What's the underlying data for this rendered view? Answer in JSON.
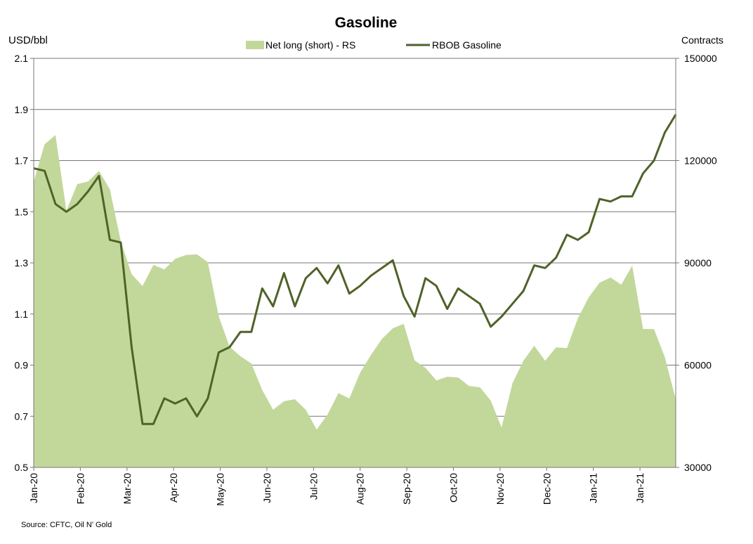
{
  "chart_data": {
    "type": "area+line",
    "title": "Gasoline",
    "left_axis_label": "USD/bbl",
    "right_axis_label": "Contracts",
    "source": "Source: CFTC, Oil N' Gold",
    "ylim_left": [
      0.5,
      2.1
    ],
    "yticks_left": [
      "0.5",
      "0.7",
      "0.9",
      "1.1",
      "1.3",
      "1.5",
      "1.7",
      "1.9",
      "2.1"
    ],
    "ylim_right": [
      30000,
      150000
    ],
    "yticks_right": [
      "30000",
      "60000",
      "90000",
      "120000",
      "150000"
    ],
    "xtick_labels": [
      "Jan-20",
      "Feb-20",
      "Mar-20",
      "Apr-20",
      "May-20",
      "Jun-20",
      "Jul-20",
      "Aug-20",
      "Sep-20",
      "Oct-20",
      "Nov-20",
      "Dec-20",
      "Jan-21",
      "Jan-21"
    ],
    "grid": true,
    "legend_placement": "top-center",
    "series": [
      {
        "name": "Net long (short) - RS",
        "type": "area",
        "axis": "right",
        "color": "#c4d79b",
        "values": [
          113900,
          124800,
          127500,
          105300,
          113100,
          113900,
          117000,
          111600,
          96400,
          86700,
          83200,
          89400,
          88100,
          91200,
          92300,
          92500,
          90200,
          74300,
          65400,
          62600,
          60500,
          52700,
          46900,
          49400,
          50000,
          46900,
          41100,
          45500,
          51800,
          50200,
          57800,
          63000,
          67700,
          70800,
          72100,
          61400,
          59200,
          55500,
          56600,
          56400,
          53900,
          53500,
          49600,
          41700,
          54700,
          61300,
          65700,
          61300,
          65200,
          65000,
          73700,
          79900,
          84200,
          85700,
          83600,
          89200,
          70600,
          70600,
          62300,
          50000
        ]
      },
      {
        "name": "RBOB Gasoline",
        "type": "line",
        "axis": "left",
        "color": "#4f6228",
        "values": [
          1.67,
          1.66,
          1.53,
          1.5,
          1.53,
          1.58,
          1.64,
          1.39,
          1.38,
          0.97,
          0.67,
          0.67,
          0.77,
          0.75,
          0.77,
          0.7,
          0.77,
          0.95,
          0.97,
          1.03,
          1.03,
          1.2,
          1.13,
          1.26,
          1.13,
          1.24,
          1.28,
          1.22,
          1.29,
          1.18,
          1.21,
          1.25,
          1.28,
          1.31,
          1.17,
          1.09,
          1.24,
          1.21,
          1.12,
          1.2,
          1.17,
          1.14,
          1.05,
          1.09,
          1.14,
          1.19,
          1.29,
          1.28,
          1.32,
          1.41,
          1.39,
          1.42,
          1.55,
          1.54,
          1.56,
          1.56,
          1.65,
          1.7,
          1.81,
          1.88
        ]
      }
    ]
  }
}
